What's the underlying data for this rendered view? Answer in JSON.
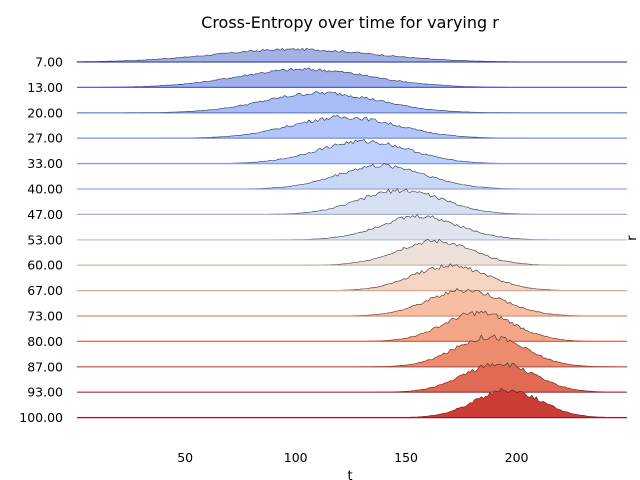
{
  "chart_data": {
    "type": "ridgeline",
    "title": "Cross-Entropy over time for varying r",
    "xlabel": "t",
    "ylabel": "r",
    "xlim": [
      1,
      250
    ],
    "xticks": [
      50,
      100,
      150,
      200
    ],
    "series": [
      {
        "name": "7.00",
        "label": "7.00",
        "color": "#a4b1e3",
        "line": "#3b4cc0",
        "x_start": 1,
        "x_end": 250,
        "center": 100,
        "width": 36,
        "peak": 0.42
      },
      {
        "name": "13.00",
        "label": "13.00",
        "color": "#9fb0ea",
        "line": "#4b64d6",
        "x_start": 1,
        "x_end": 250,
        "center": 104,
        "width": 30,
        "peak": 0.6
      },
      {
        "name": "20.00",
        "label": "20.00",
        "color": "#a8bcf6",
        "line": "#5a78e8",
        "x_start": 1,
        "x_end": 250,
        "center": 112,
        "width": 26,
        "peak": 0.66
      },
      {
        "name": "27.00",
        "label": "27.00",
        "color": "#b2c6fc",
        "line": "#6a8af2",
        "x_start": 1,
        "x_end": 250,
        "center": 122,
        "width": 24,
        "peak": 0.7
      },
      {
        "name": "33.00",
        "label": "33.00",
        "color": "#bdd0fd",
        "line": "#7a99f5",
        "x_start": 1,
        "x_end": 250,
        "center": 131,
        "width": 21,
        "peak": 0.74
      },
      {
        "name": "40.00",
        "label": "40.00",
        "color": "#c9d8f7",
        "line": "#8da7f2",
        "x_start": 1,
        "x_end": 250,
        "center": 139,
        "width": 20,
        "peak": 0.78
      },
      {
        "name": "47.00",
        "label": "47.00",
        "color": "#d6e0f1",
        "line": "#9fb3e8",
        "x_start": 1,
        "x_end": 250,
        "center": 148,
        "width": 19,
        "peak": 0.8
      },
      {
        "name": "53.00",
        "label": "53.00",
        "color": "#e1e4ec",
        "line": "#b6c0d8",
        "x_start": 1,
        "x_end": 250,
        "center": 156,
        "width": 18,
        "peak": 0.78
      },
      {
        "name": "60.00",
        "label": "60.00",
        "color": "#ece0da",
        "line": "#d2b6a6",
        "x_start": 1,
        "x_end": 250,
        "center": 163,
        "width": 17,
        "peak": 0.8
      },
      {
        "name": "67.00",
        "label": "67.00",
        "color": "#f4d4c3",
        "line": "#e8a488",
        "x_start": 1,
        "x_end": 250,
        "center": 170,
        "width": 17,
        "peak": 0.82
      },
      {
        "name": "73.00",
        "label": "73.00",
        "color": "#f6bfa4",
        "line": "#e98a68",
        "x_start": 1,
        "x_end": 250,
        "center": 177,
        "width": 17,
        "peak": 0.86
      },
      {
        "name": "80.00",
        "label": "80.00",
        "color": "#f3a587",
        "line": "#e06a4a",
        "x_start": 1,
        "x_end": 250,
        "center": 183,
        "width": 16,
        "peak": 0.95
      },
      {
        "name": "87.00",
        "label": "87.00",
        "color": "#ec8b6e",
        "line": "#d04a33",
        "x_start": 1,
        "x_end": 250,
        "center": 188,
        "width": 16,
        "peak": 1.0
      },
      {
        "name": "93.00",
        "label": "93.00",
        "color": "#e06a53",
        "line": "#c0282a",
        "x_start": 1,
        "x_end": 250,
        "center": 192,
        "width": 16,
        "peak": 0.95
      },
      {
        "name": "100.00",
        "label": "100.00",
        "color": "#cc3d35",
        "line": "#a0141e",
        "x_start": 1,
        "x_end": 250,
        "center": 196,
        "width": 15,
        "peak": 0.92
      }
    ]
  }
}
